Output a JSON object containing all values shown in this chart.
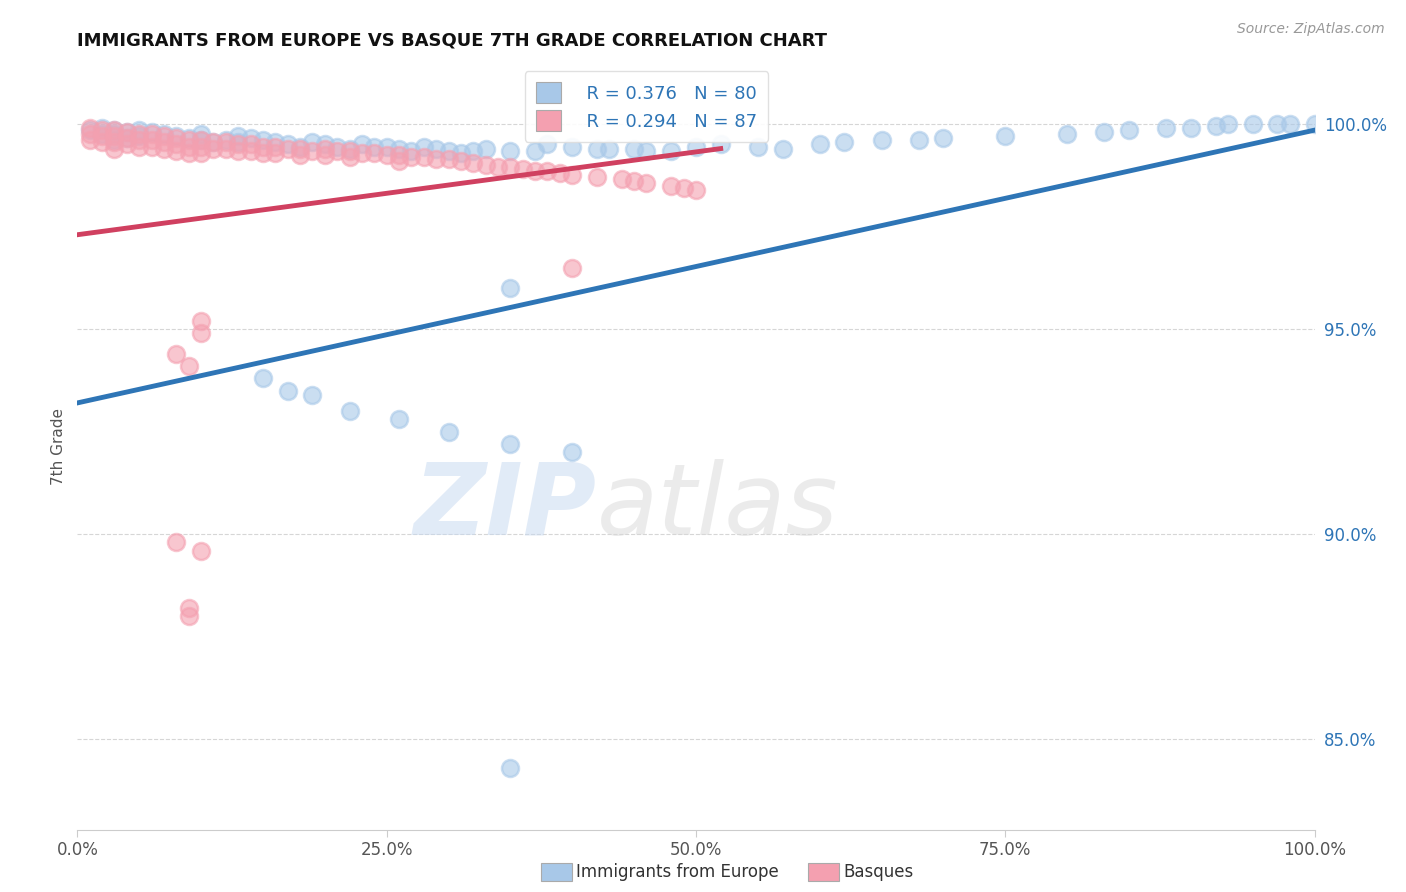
{
  "title": "IMMIGRANTS FROM EUROPE VS BASQUE 7TH GRADE CORRELATION CHART",
  "source_text": "Source: ZipAtlas.com",
  "ylabel": "7th Grade",
  "xmin": 0.0,
  "xmax": 1.0,
  "ymin": 0.828,
  "ymax": 1.015,
  "yticks": [
    0.85,
    0.9,
    0.95,
    1.0
  ],
  "ytick_labels": [
    "85.0%",
    "90.0%",
    "95.0%",
    "100.0%"
  ],
  "xtick_labels": [
    "0.0%",
    "25.0%",
    "50.0%",
    "75.0%",
    "100.0%"
  ],
  "xticks": [
    0.0,
    0.25,
    0.5,
    0.75,
    1.0
  ],
  "blue_color": "#A8C8E8",
  "pink_color": "#F4A0B0",
  "blue_line_color": "#2E75B6",
  "pink_line_color": "#D04060",
  "legend_R_blue": "R = 0.376",
  "legend_N_blue": "N = 80",
  "legend_R_pink": "R = 0.294",
  "legend_N_pink": "N = 87",
  "legend_label_blue": "Immigrants from Europe",
  "legend_label_pink": "Basques",
  "watermark_zip": "ZIP",
  "watermark_atlas": "atlas",
  "blue_scatter_x": [
    0.01,
    0.02,
    0.02,
    0.03,
    0.03,
    0.03,
    0.04,
    0.04,
    0.05,
    0.05,
    0.06,
    0.07,
    0.08,
    0.09,
    0.1,
    0.1,
    0.11,
    0.12,
    0.13,
    0.13,
    0.14,
    0.15,
    0.16,
    0.17,
    0.18,
    0.19,
    0.2,
    0.21,
    0.22,
    0.23,
    0.24,
    0.25,
    0.26,
    0.27,
    0.28,
    0.29,
    0.3,
    0.31,
    0.32,
    0.33,
    0.35,
    0.37,
    0.38,
    0.4,
    0.42,
    0.43,
    0.45,
    0.46,
    0.48,
    0.5,
    0.52,
    0.55,
    0.57,
    0.6,
    0.62,
    0.65,
    0.68,
    0.7,
    0.75,
    0.8,
    0.83,
    0.85,
    0.88,
    0.9,
    0.92,
    0.93,
    0.95,
    0.97,
    0.98,
    1.0,
    0.15,
    0.17,
    0.19,
    0.22,
    0.26,
    0.3,
    0.35,
    0.35,
    0.4,
    0.35
  ],
  "blue_scatter_y": [
    0.9985,
    0.999,
    0.9975,
    0.9985,
    0.9975,
    0.996,
    0.998,
    0.9965,
    0.9985,
    0.997,
    0.998,
    0.9975,
    0.997,
    0.9965,
    0.996,
    0.9975,
    0.9955,
    0.996,
    0.9955,
    0.997,
    0.9965,
    0.996,
    0.9955,
    0.995,
    0.9945,
    0.9955,
    0.995,
    0.9945,
    0.994,
    0.995,
    0.9945,
    0.9945,
    0.994,
    0.9935,
    0.9945,
    0.994,
    0.9935,
    0.993,
    0.9935,
    0.994,
    0.9935,
    0.9935,
    0.995,
    0.9945,
    0.994,
    0.994,
    0.994,
    0.9935,
    0.9935,
    0.9945,
    0.995,
    0.9945,
    0.994,
    0.995,
    0.9955,
    0.996,
    0.996,
    0.9965,
    0.997,
    0.9975,
    0.998,
    0.9985,
    0.999,
    0.999,
    0.9995,
    1.0,
    1.0,
    1.0,
    1.0,
    1.0,
    0.938,
    0.935,
    0.934,
    0.93,
    0.928,
    0.925,
    0.922,
    0.96,
    0.92,
    0.843
  ],
  "pink_scatter_x": [
    0.01,
    0.01,
    0.01,
    0.02,
    0.02,
    0.02,
    0.03,
    0.03,
    0.03,
    0.03,
    0.04,
    0.04,
    0.04,
    0.05,
    0.05,
    0.05,
    0.06,
    0.06,
    0.06,
    0.07,
    0.07,
    0.07,
    0.08,
    0.08,
    0.08,
    0.09,
    0.09,
    0.09,
    0.1,
    0.1,
    0.1,
    0.11,
    0.11,
    0.12,
    0.12,
    0.13,
    0.13,
    0.14,
    0.14,
    0.15,
    0.15,
    0.16,
    0.16,
    0.17,
    0.18,
    0.18,
    0.19,
    0.2,
    0.2,
    0.21,
    0.22,
    0.22,
    0.23,
    0.24,
    0.25,
    0.26,
    0.26,
    0.27,
    0.28,
    0.29,
    0.3,
    0.31,
    0.32,
    0.33,
    0.34,
    0.35,
    0.36,
    0.37,
    0.38,
    0.39,
    0.4,
    0.42,
    0.44,
    0.45,
    0.46,
    0.48,
    0.49,
    0.5,
    0.1,
    0.1,
    0.08,
    0.09,
    0.4,
    0.08,
    0.1,
    0.09,
    0.09
  ],
  "pink_scatter_y": [
    0.999,
    0.9975,
    0.996,
    0.9985,
    0.997,
    0.9955,
    0.9985,
    0.997,
    0.9955,
    0.994,
    0.998,
    0.9965,
    0.995,
    0.9975,
    0.996,
    0.9945,
    0.9975,
    0.996,
    0.9945,
    0.997,
    0.9955,
    0.994,
    0.9965,
    0.995,
    0.9935,
    0.996,
    0.9945,
    0.993,
    0.996,
    0.9945,
    0.993,
    0.9955,
    0.994,
    0.9955,
    0.994,
    0.995,
    0.9935,
    0.995,
    0.9935,
    0.9945,
    0.993,
    0.9945,
    0.993,
    0.994,
    0.994,
    0.9925,
    0.9935,
    0.994,
    0.9925,
    0.9935,
    0.9935,
    0.992,
    0.993,
    0.993,
    0.9925,
    0.9925,
    0.991,
    0.992,
    0.992,
    0.9915,
    0.9915,
    0.991,
    0.9905,
    0.99,
    0.9895,
    0.9895,
    0.989,
    0.9885,
    0.9885,
    0.988,
    0.9875,
    0.987,
    0.9865,
    0.986,
    0.9855,
    0.985,
    0.9845,
    0.984,
    0.952,
    0.949,
    0.944,
    0.941,
    0.965,
    0.898,
    0.896,
    0.882,
    0.88
  ],
  "blue_trendline_x": [
    0.0,
    1.0
  ],
  "blue_trendline_y": [
    0.932,
    0.9985
  ],
  "pink_trendline_x": [
    0.0,
    0.52
  ],
  "pink_trendline_y": [
    0.973,
    0.994
  ]
}
